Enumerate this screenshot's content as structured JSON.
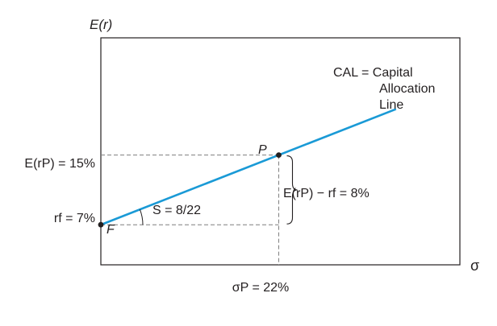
{
  "chart_data": {
    "type": "line",
    "title": "",
    "xlabel": "σ",
    "ylabel": "E(r)",
    "colors": {
      "line": "#1a9ad6",
      "axis": "#231f20",
      "guide": "#7f7f7f"
    },
    "series": [
      {
        "name": "",
        "x": [
          0,
          36.5
        ],
        "y": [
          7,
          20.27
        ]
      }
    ],
    "points": [
      {
        "label": "F",
        "x": 0,
        "y": 7
      },
      {
        "label": "P",
        "x": 22,
        "y": 15
      }
    ],
    "annotations": {
      "cal_line1": "CAL = Capital",
      "cal_line2": "Allocation",
      "cal_line3": "Line",
      "slope": "S = 8/22",
      "premium": "E(rP) − rf = 8%",
      "y_portfolio": "E(rP) = 15%",
      "y_riskfree": "rf = 7%",
      "x_portfolio": "σP = 22%"
    },
    "xlim": [
      0,
      44.4
    ],
    "ylim": [
      2.4,
      28.45
    ],
    "grid": false
  }
}
